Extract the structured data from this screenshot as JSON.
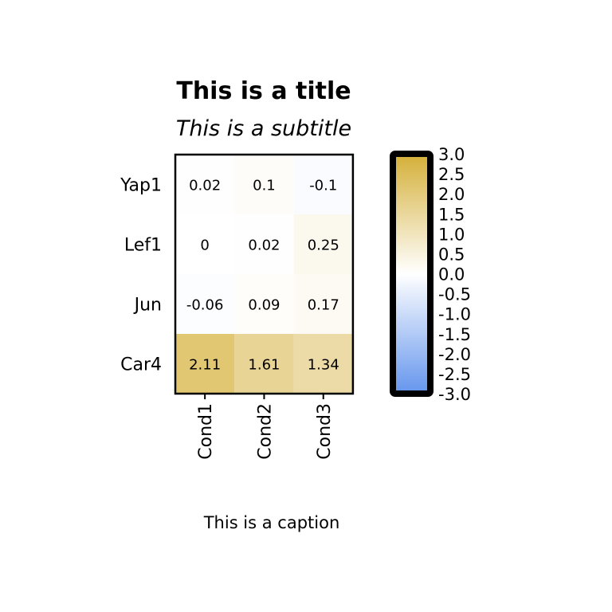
{
  "chart_data": {
    "type": "heatmap",
    "title": "This is a title",
    "subtitle": "This is a subtitle",
    "caption": "This is a caption",
    "rows": [
      "Yap1",
      "Lef1",
      "Jun",
      "Car4"
    ],
    "columns": [
      "Cond1",
      "Cond2",
      "Cond3"
    ],
    "values": [
      [
        0.02,
        0.1,
        -0.1
      ],
      [
        0,
        0.02,
        0.25
      ],
      [
        -0.06,
        0.09,
        0.17
      ],
      [
        2.11,
        1.61,
        1.34
      ]
    ],
    "color_scale": {
      "min": -3.0,
      "max": 3.0,
      "low_color": "#6495ED",
      "mid_color": "#FFFFFF",
      "high_color": "#D4AF37",
      "ticks": [
        "3.0",
        "2.5",
        "2.0",
        "1.5",
        "1.0",
        "0.5",
        "0.0",
        "-0.5",
        "-1.0",
        "-1.5",
        "-2.0",
        "-2.5",
        "-3.0"
      ]
    },
    "legend_position": "right"
  }
}
